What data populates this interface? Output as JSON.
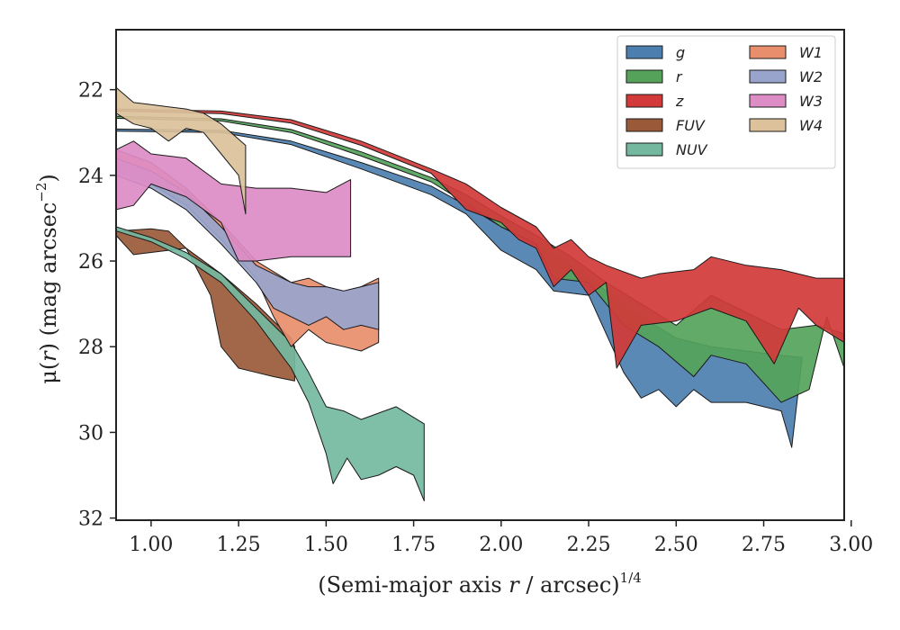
{
  "chart_data": {
    "type": "area",
    "title": "",
    "xlabel": "(Semi-major axis r / arcsec)^1/4",
    "xlabel_parts": {
      "pre": "(Semi-major axis ",
      "var": "r",
      "mid": " / arcsec)",
      "sup": "1/4"
    },
    "ylabel": "μ(r) (mag arcsec^−2)",
    "ylabel_parts": {
      "mu": "μ(",
      "var": "r",
      "mid": ") (mag arcsec",
      "sup": "−2",
      "end": ")"
    },
    "xlim": [
      0.9,
      2.98
    ],
    "ylim": [
      32.05,
      20.6
    ],
    "y_inverted": true,
    "xticks": [
      1.0,
      1.25,
      1.5,
      1.75,
      2.0,
      2.25,
      2.5,
      2.75,
      3.0
    ],
    "xtick_labels": [
      "1.00",
      "1.25",
      "1.50",
      "1.75",
      "2.00",
      "2.25",
      "2.50",
      "2.75",
      "3.00"
    ],
    "yticks": [
      22,
      24,
      26,
      28,
      30,
      32
    ],
    "ytick_labels": [
      "22",
      "24",
      "26",
      "28",
      "30",
      "32"
    ],
    "grid": false,
    "legend_position": "top-right",
    "series": [
      {
        "name": "g",
        "color": "#4c7fb0",
        "upper": [
          [
            0.9,
            22.92
          ],
          [
            1.2,
            22.95
          ],
          [
            1.4,
            23.2
          ],
          [
            1.6,
            23.7
          ],
          [
            1.8,
            24.25
          ],
          [
            1.9,
            24.7
          ],
          [
            2.0,
            25.2
          ],
          [
            2.1,
            25.6
          ],
          [
            2.2,
            26.1
          ],
          [
            2.3,
            26.7
          ],
          [
            2.4,
            27.3
          ],
          [
            2.5,
            27.8
          ],
          [
            2.6,
            28.0
          ],
          [
            2.7,
            28.1
          ],
          [
            2.8,
            28.2
          ],
          [
            2.86,
            28.25
          ]
        ],
        "lower": [
          [
            0.9,
            22.97
          ],
          [
            1.2,
            23.0
          ],
          [
            1.4,
            23.28
          ],
          [
            1.6,
            23.85
          ],
          [
            1.8,
            24.45
          ],
          [
            1.9,
            24.9
          ],
          [
            2.0,
            25.75
          ],
          [
            2.1,
            26.2
          ],
          [
            2.15,
            26.7
          ],
          [
            2.25,
            26.8
          ],
          [
            2.35,
            28.6
          ],
          [
            2.4,
            29.2
          ],
          [
            2.45,
            29.0
          ],
          [
            2.5,
            29.4
          ],
          [
            2.55,
            29.0
          ],
          [
            2.6,
            29.3
          ],
          [
            2.7,
            29.3
          ],
          [
            2.8,
            29.5
          ],
          [
            2.83,
            30.35
          ],
          [
            2.86,
            28.25
          ]
        ]
      },
      {
        "name": "r",
        "color": "#55a35a",
        "upper": [
          [
            0.9,
            22.62
          ],
          [
            1.2,
            22.68
          ],
          [
            1.4,
            22.93
          ],
          [
            1.6,
            23.45
          ],
          [
            1.8,
            24.05
          ],
          [
            1.9,
            24.45
          ],
          [
            2.0,
            24.95
          ],
          [
            2.1,
            25.4
          ],
          [
            2.2,
            25.9
          ],
          [
            2.3,
            26.5
          ],
          [
            2.4,
            27.0
          ],
          [
            2.5,
            27.5
          ],
          [
            2.6,
            26.8
          ],
          [
            2.7,
            27.2
          ],
          [
            2.8,
            27.6
          ],
          [
            2.9,
            27.5
          ],
          [
            2.98,
            27.7
          ]
        ],
        "lower": [
          [
            0.9,
            22.67
          ],
          [
            1.2,
            22.73
          ],
          [
            1.4,
            23.0
          ],
          [
            1.6,
            23.55
          ],
          [
            1.8,
            24.15
          ],
          [
            1.9,
            24.65
          ],
          [
            2.0,
            25.2
          ],
          [
            2.1,
            25.6
          ],
          [
            2.15,
            26.4
          ],
          [
            2.25,
            26.5
          ],
          [
            2.35,
            27.5
          ],
          [
            2.45,
            28.0
          ],
          [
            2.55,
            28.7
          ],
          [
            2.6,
            28.2
          ],
          [
            2.7,
            28.4
          ],
          [
            2.8,
            29.3
          ],
          [
            2.88,
            29.0
          ],
          [
            2.93,
            27.3
          ],
          [
            2.98,
            28.5
          ]
        ]
      },
      {
        "name": "z",
        "color": "#d23a3a",
        "upper": [
          [
            0.9,
            22.45
          ],
          [
            1.2,
            22.5
          ],
          [
            1.4,
            22.7
          ],
          [
            1.6,
            23.2
          ],
          [
            1.8,
            23.85
          ],
          [
            1.9,
            24.2
          ],
          [
            2.0,
            24.75
          ],
          [
            2.1,
            25.2
          ],
          [
            2.15,
            25.7
          ],
          [
            2.2,
            25.5
          ],
          [
            2.25,
            25.9
          ],
          [
            2.3,
            26.1
          ],
          [
            2.4,
            26.4
          ],
          [
            2.45,
            26.3
          ],
          [
            2.55,
            26.2
          ],
          [
            2.6,
            25.9
          ],
          [
            2.7,
            26.1
          ],
          [
            2.8,
            26.2
          ],
          [
            2.9,
            26.4
          ],
          [
            2.98,
            26.4
          ]
        ],
        "lower": [
          [
            0.9,
            22.5
          ],
          [
            1.2,
            22.56
          ],
          [
            1.4,
            22.78
          ],
          [
            1.6,
            23.3
          ],
          [
            1.8,
            23.95
          ],
          [
            1.9,
            24.8
          ],
          [
            2.0,
            25.1
          ],
          [
            2.05,
            25.5
          ],
          [
            2.1,
            25.7
          ],
          [
            2.15,
            26.6
          ],
          [
            2.2,
            26.2
          ],
          [
            2.25,
            26.8
          ],
          [
            2.3,
            26.5
          ],
          [
            2.33,
            28.5
          ],
          [
            2.4,
            27.5
          ],
          [
            2.5,
            27.4
          ],
          [
            2.6,
            27.1
          ],
          [
            2.7,
            27.4
          ],
          [
            2.78,
            28.4
          ],
          [
            2.85,
            27.1
          ],
          [
            2.9,
            27.5
          ],
          [
            2.98,
            27.9
          ]
        ]
      },
      {
        "name": "FUV",
        "color": "#9a5a3a",
        "upper": [
          [
            0.9,
            25.3
          ],
          [
            1.0,
            25.25
          ],
          [
            1.05,
            25.3
          ],
          [
            1.1,
            25.7
          ],
          [
            1.2,
            26.3
          ],
          [
            1.3,
            27.0
          ],
          [
            1.4,
            27.8
          ],
          [
            1.41,
            28.0
          ]
        ],
        "lower": [
          [
            0.9,
            25.4
          ],
          [
            0.95,
            25.85
          ],
          [
            1.0,
            25.8
          ],
          [
            1.05,
            25.75
          ],
          [
            1.1,
            25.7
          ],
          [
            1.17,
            26.8
          ],
          [
            1.2,
            28.0
          ],
          [
            1.25,
            28.5
          ],
          [
            1.3,
            28.6
          ],
          [
            1.35,
            28.7
          ],
          [
            1.41,
            28.8
          ]
        ]
      },
      {
        "name": "NUV",
        "color": "#74b89f",
        "upper": [
          [
            0.9,
            25.2
          ],
          [
            1.0,
            25.45
          ],
          [
            1.1,
            25.8
          ],
          [
            1.2,
            26.3
          ],
          [
            1.3,
            27.1
          ],
          [
            1.4,
            27.9
          ],
          [
            1.45,
            28.6
          ],
          [
            1.5,
            29.4
          ],
          [
            1.55,
            29.5
          ],
          [
            1.6,
            29.7
          ],
          [
            1.7,
            29.4
          ],
          [
            1.78,
            29.8
          ]
        ],
        "lower": [
          [
            0.9,
            25.3
          ],
          [
            1.0,
            25.55
          ],
          [
            1.1,
            25.95
          ],
          [
            1.2,
            26.5
          ],
          [
            1.3,
            27.4
          ],
          [
            1.4,
            28.5
          ],
          [
            1.45,
            29.3
          ],
          [
            1.5,
            30.5
          ],
          [
            1.52,
            31.2
          ],
          [
            1.56,
            30.6
          ],
          [
            1.6,
            31.1
          ],
          [
            1.65,
            31.0
          ],
          [
            1.7,
            30.8
          ],
          [
            1.75,
            31.0
          ],
          [
            1.78,
            31.6
          ]
        ]
      },
      {
        "name": "W1",
        "color": "#e88e6d",
        "upper": [
          [
            0.9,
            23.4
          ],
          [
            1.0,
            23.7
          ],
          [
            1.1,
            24.3
          ],
          [
            1.2,
            25.1
          ],
          [
            1.3,
            26.0
          ],
          [
            1.4,
            26.5
          ],
          [
            1.45,
            26.4
          ],
          [
            1.5,
            26.6
          ],
          [
            1.55,
            26.7
          ],
          [
            1.6,
            26.6
          ],
          [
            1.65,
            26.4
          ]
        ],
        "lower": [
          [
            0.9,
            23.9
          ],
          [
            1.0,
            24.2
          ],
          [
            1.1,
            24.7
          ],
          [
            1.2,
            25.5
          ],
          [
            1.3,
            26.4
          ],
          [
            1.35,
            27.3
          ],
          [
            1.4,
            28.0
          ],
          [
            1.45,
            27.6
          ],
          [
            1.5,
            27.9
          ],
          [
            1.55,
            28.0
          ],
          [
            1.6,
            28.1
          ],
          [
            1.65,
            27.9
          ]
        ]
      },
      {
        "name": "W2",
        "color": "#98a4cc",
        "upper": [
          [
            0.9,
            23.6
          ],
          [
            1.0,
            23.9
          ],
          [
            1.1,
            24.4
          ],
          [
            1.2,
            25.2
          ],
          [
            1.3,
            26.1
          ],
          [
            1.4,
            26.5
          ],
          [
            1.45,
            26.6
          ],
          [
            1.5,
            26.6
          ],
          [
            1.55,
            26.7
          ],
          [
            1.6,
            26.6
          ],
          [
            1.65,
            26.5
          ]
        ],
        "lower": [
          [
            0.9,
            24.0
          ],
          [
            1.0,
            24.3
          ],
          [
            1.1,
            24.8
          ],
          [
            1.2,
            25.6
          ],
          [
            1.3,
            26.5
          ],
          [
            1.35,
            27.1
          ],
          [
            1.4,
            27.3
          ],
          [
            1.45,
            27.5
          ],
          [
            1.5,
            27.3
          ],
          [
            1.55,
            27.6
          ],
          [
            1.6,
            27.5
          ],
          [
            1.65,
            27.6
          ]
        ]
      },
      {
        "name": "W3",
        "color": "#dd8cc6",
        "upper": [
          [
            0.9,
            23.4
          ],
          [
            0.95,
            23.2
          ],
          [
            1.0,
            23.5
          ],
          [
            1.1,
            23.6
          ],
          [
            1.2,
            24.2
          ],
          [
            1.3,
            24.3
          ],
          [
            1.4,
            24.3
          ],
          [
            1.5,
            24.4
          ],
          [
            1.57,
            24.1
          ]
        ],
        "lower": [
          [
            0.9,
            24.8
          ],
          [
            0.95,
            24.7
          ],
          [
            1.0,
            24.2
          ],
          [
            1.1,
            24.5
          ],
          [
            1.2,
            25.1
          ],
          [
            1.25,
            26.0
          ],
          [
            1.3,
            26.0
          ],
          [
            1.4,
            25.9
          ],
          [
            1.5,
            25.9
          ],
          [
            1.57,
            25.9
          ]
        ]
      },
      {
        "name": "W4",
        "color": "#dcc19b",
        "upper": [
          [
            0.9,
            21.95
          ],
          [
            0.95,
            22.3
          ],
          [
            1.0,
            22.35
          ],
          [
            1.05,
            22.4
          ],
          [
            1.1,
            22.45
          ],
          [
            1.15,
            22.55
          ],
          [
            1.2,
            22.8
          ],
          [
            1.27,
            23.3
          ]
        ],
        "lower": [
          [
            0.9,
            22.55
          ],
          [
            0.95,
            22.8
          ],
          [
            1.0,
            22.9
          ],
          [
            1.05,
            23.2
          ],
          [
            1.1,
            22.9
          ],
          [
            1.15,
            23.0
          ],
          [
            1.2,
            23.5
          ],
          [
            1.25,
            24.0
          ],
          [
            1.27,
            24.9
          ]
        ]
      }
    ]
  }
}
